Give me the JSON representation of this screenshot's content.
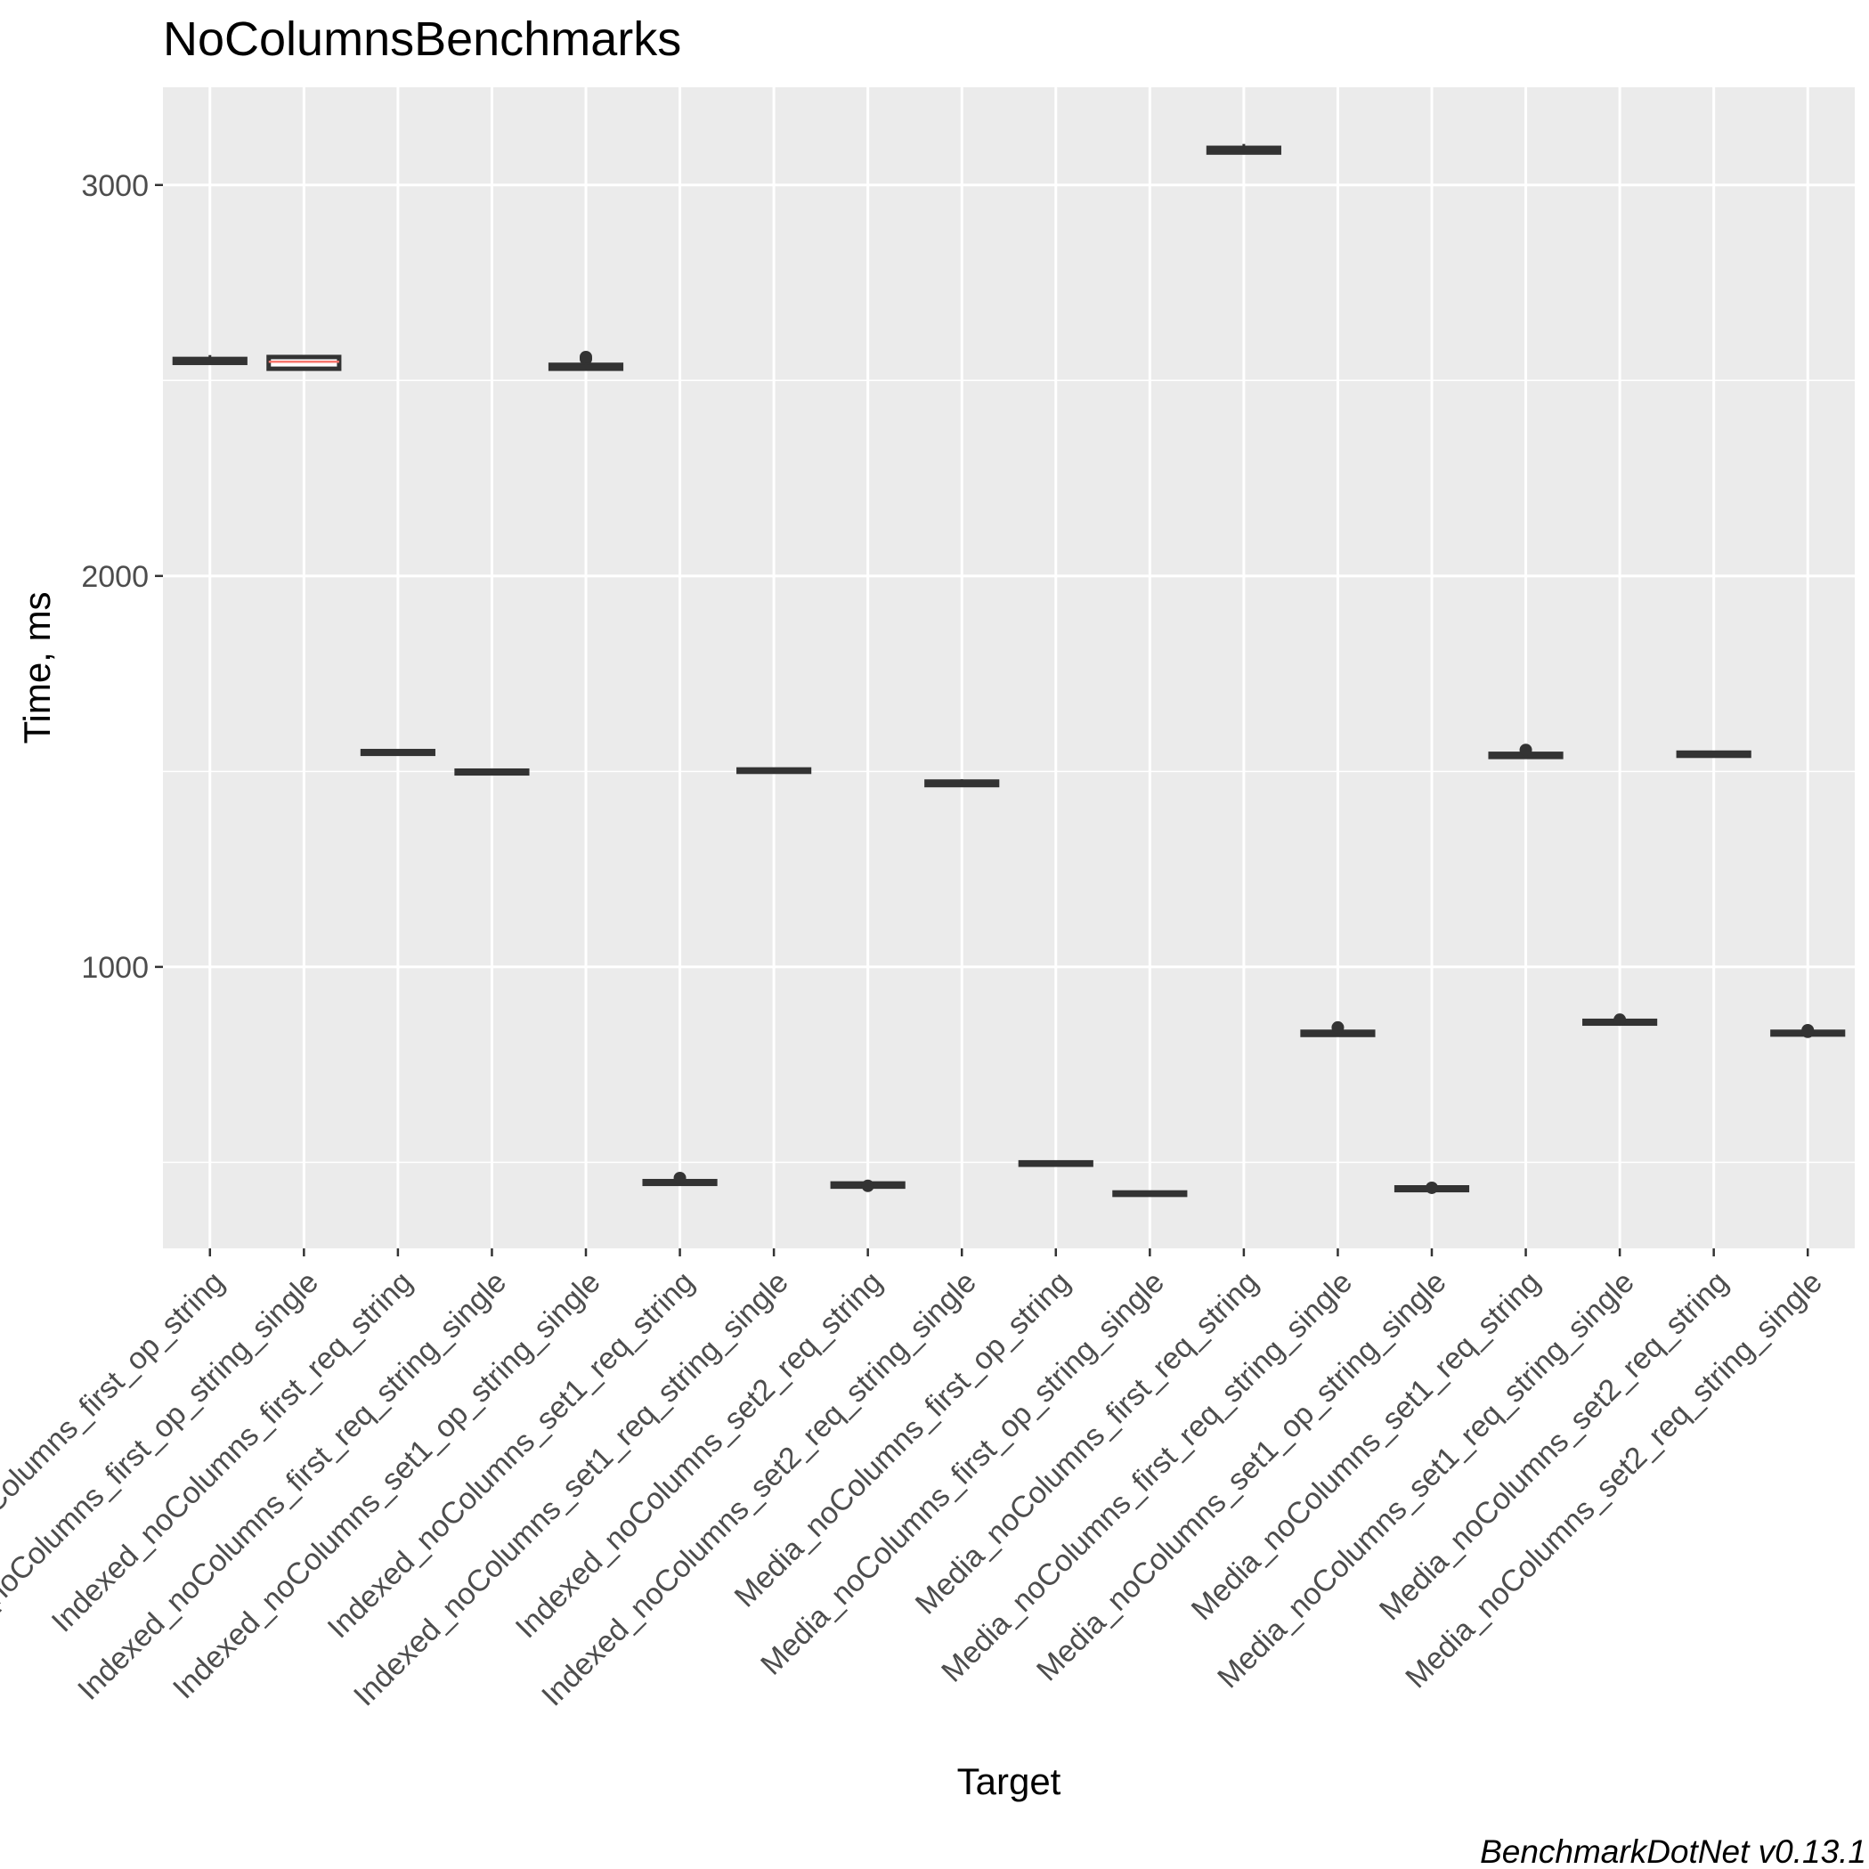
{
  "chart_data": {
    "type": "box",
    "title": "NoColumnsBenchmarks",
    "xlabel": "Target",
    "ylabel": "Time, ms",
    "caption": "BenchmarkDotNet v0.13.1",
    "ylim": [
      280,
      3250
    ],
    "y_ticks": [
      1000,
      2000,
      3000
    ],
    "grid": true,
    "colors": {
      "panel": "#ebebeb",
      "grid": "#ffffff",
      "box_edge": "#333333",
      "median_highlight": "#f8766d"
    },
    "categories": [
      "Indexed_noColumns_first_op_string",
      "Indexed_noColumns_first_op_string_single",
      "Indexed_noColumns_first_req_string",
      "Indexed_noColumns_first_req_string_single",
      "Indexed_noColumns_set1_op_string_single",
      "Indexed_noColumns_set1_req_string",
      "Indexed_noColumns_set1_req_string_single",
      "Indexed_noColumns_set2_req_string",
      "Indexed_noColumns_set2_req_string_single",
      "Media_noColumns_first_op_string",
      "Media_noColumns_first_op_string_single",
      "Media_noColumns_first_req_string",
      "Media_noColumns_first_req_string_single",
      "Media_noColumns_set1_op_string_single",
      "Media_noColumns_set1_req_string",
      "Media_noColumns_set1_req_string_single",
      "Media_noColumns_set2_req_string",
      "Media_noColumns_set2_req_string_single"
    ],
    "boxes": [
      {
        "q1": 2545,
        "median": 2550,
        "q3": 2555,
        "whisker_low": 2540,
        "whisker_high": 2565,
        "outliers": []
      },
      {
        "q1": 2530,
        "median": 2548,
        "q3": 2560,
        "whisker_low": 2525,
        "whisker_high": 2565,
        "outliers": [],
        "highlight": true
      },
      {
        "q1": 1545,
        "median": 1548,
        "q3": 1552,
        "whisker_low": 1543,
        "whisker_high": 1555,
        "outliers": []
      },
      {
        "q1": 1495,
        "median": 1498,
        "q3": 1502,
        "whisker_low": 1493,
        "whisker_high": 1505,
        "outliers": []
      },
      {
        "q1": 2530,
        "median": 2534,
        "q3": 2540,
        "whisker_low": 2527,
        "whisker_high": 2545,
        "outliers": [
          2555,
          2560
        ]
      },
      {
        "q1": 445,
        "median": 448,
        "q3": 452,
        "whisker_low": 443,
        "whisker_high": 455,
        "outliers": [
          460
        ]
      },
      {
        "q1": 1499,
        "median": 1502,
        "q3": 1505,
        "whisker_low": 1497,
        "whisker_high": 1507,
        "outliers": []
      },
      {
        "q1": 438,
        "median": 442,
        "q3": 446,
        "whisker_low": 436,
        "whisker_high": 448,
        "outliers": [
          440
        ]
      },
      {
        "q1": 1465,
        "median": 1470,
        "q3": 1474,
        "whisker_low": 1462,
        "whisker_high": 1480,
        "outliers": []
      },
      {
        "q1": 494,
        "median": 497,
        "q3": 500,
        "whisker_low": 492,
        "whisker_high": 502,
        "outliers": []
      },
      {
        "q1": 417,
        "median": 420,
        "q3": 423,
        "whisker_low": 415,
        "whisker_high": 425,
        "outliers": []
      },
      {
        "q1": 3083,
        "median": 3090,
        "q3": 3095,
        "whisker_low": 3080,
        "whisker_high": 3105,
        "outliers": []
      },
      {
        "q1": 826,
        "median": 830,
        "q3": 834,
        "whisker_low": 824,
        "whisker_high": 836,
        "outliers": [
          845
        ]
      },
      {
        "q1": 429,
        "median": 432,
        "q3": 436,
        "whisker_low": 427,
        "whisker_high": 438,
        "outliers": [
          435
        ]
      },
      {
        "q1": 1537,
        "median": 1541,
        "q3": 1545,
        "whisker_low": 1535,
        "whisker_high": 1547,
        "outliers": [
          1555
        ]
      },
      {
        "q1": 855,
        "median": 858,
        "q3": 862,
        "whisker_low": 853,
        "whisker_high": 864,
        "outliers": [
          865
        ]
      },
      {
        "q1": 1540,
        "median": 1543,
        "q3": 1548,
        "whisker_low": 1538,
        "whisker_high": 1550,
        "outliers": []
      },
      {
        "q1": 827,
        "median": 830,
        "q3": 834,
        "whisker_low": 825,
        "whisker_high": 836,
        "outliers": [
          838,
          834
        ]
      }
    ]
  }
}
